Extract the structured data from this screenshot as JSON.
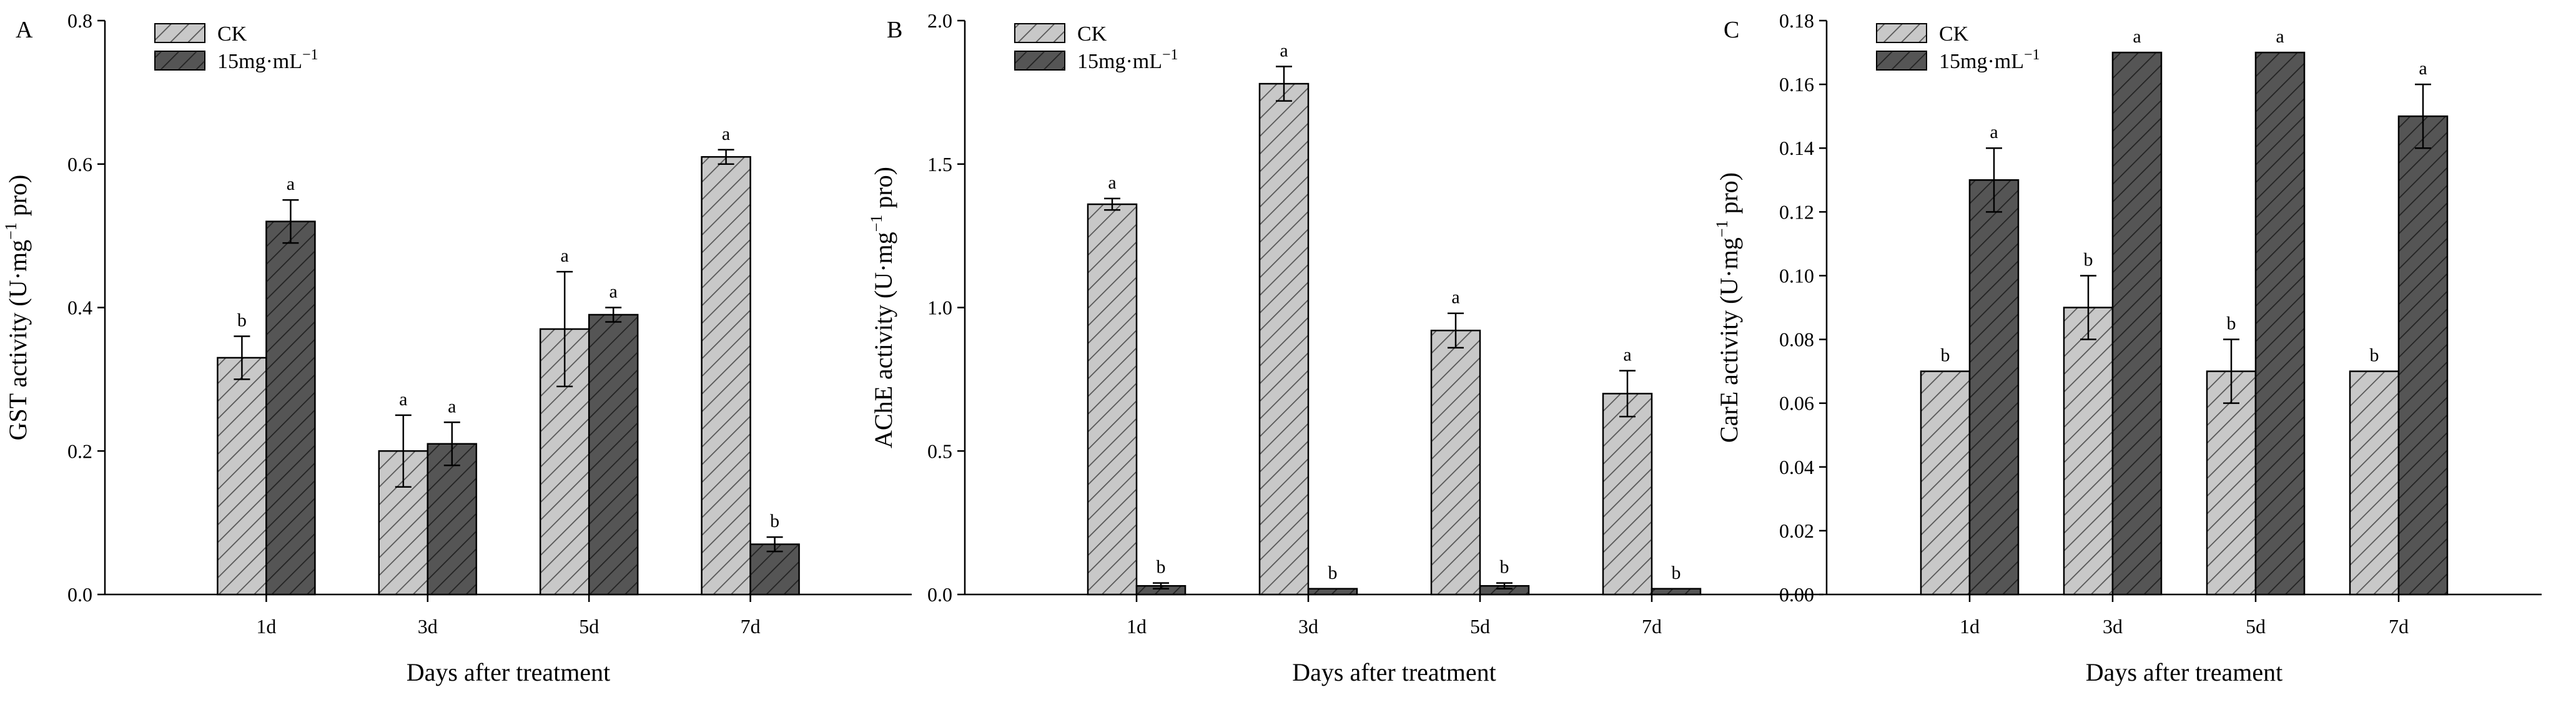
{
  "chart_data": [
    {
      "panel": "A",
      "type": "bar",
      "categories": [
        "1d",
        "3d",
        "5d",
        "7d"
      ],
      "ylabel_main": "GST activity (U·mg",
      "ylabel_sup": "−1",
      "ylabel_end": " pro)",
      "xlabel": "Days after treatment",
      "ylim": [
        0,
        0.8
      ],
      "yticks": [
        0.0,
        0.2,
        0.4,
        0.6,
        0.8
      ],
      "ytick_labels": [
        "0.0",
        "0.2",
        "0.4",
        "0.6",
        "0.8"
      ],
      "series": [
        {
          "name": "CK",
          "values": [
            0.33,
            0.2,
            0.37,
            0.61
          ],
          "errors": [
            0.03,
            0.05,
            0.08,
            0.01
          ],
          "sig": [
            "b",
            "a",
            "a",
            "a"
          ]
        },
        {
          "name": "15mg·mL",
          "sup": "−1",
          "values": [
            0.52,
            0.21,
            0.39,
            0.07
          ],
          "errors": [
            0.03,
            0.03,
            0.01,
            0.01
          ],
          "sig": [
            "a",
            "a",
            "a",
            "b"
          ]
        }
      ]
    },
    {
      "panel": "B",
      "type": "bar",
      "categories": [
        "1d",
        "3d",
        "5d",
        "7d"
      ],
      "ylabel_main": "AChE activity (U·mg",
      "ylabel_sup": "−1",
      "ylabel_end": " pro)",
      "xlabel": "Days after treatment",
      "ylim": [
        0,
        2.0
      ],
      "yticks": [
        0.0,
        0.5,
        1.0,
        1.5,
        2.0
      ],
      "ytick_labels": [
        "0.0",
        "0.5",
        "1.0",
        "1.5",
        "2.0"
      ],
      "series": [
        {
          "name": "CK",
          "values": [
            1.36,
            1.78,
            0.92,
            0.7
          ],
          "errors": [
            0.02,
            0.06,
            0.06,
            0.08
          ],
          "sig": [
            "a",
            "a",
            "a",
            "a"
          ]
        },
        {
          "name": "15mg·mL",
          "sup": "−1",
          "values": [
            0.03,
            0.02,
            0.03,
            0.02
          ],
          "errors": [
            0.01,
            0.0,
            0.01,
            0.0
          ],
          "sig": [
            "b",
            "b",
            "b",
            "b"
          ]
        }
      ]
    },
    {
      "panel": "C",
      "type": "bar",
      "categories": [
        "1d",
        "3d",
        "5d",
        "7d"
      ],
      "ylabel_main": "CarE activity (U·mg",
      "ylabel_sup": "−1",
      "ylabel_end": " pro)",
      "xlabel": "Days after treament",
      "ylim": [
        0,
        0.18
      ],
      "yticks": [
        0.0,
        0.02,
        0.04,
        0.06,
        0.08,
        0.1,
        0.12,
        0.14,
        0.16,
        0.18
      ],
      "ytick_labels": [
        "0.00",
        "0.02",
        "0.04",
        "0.06",
        "0.08",
        "0.10",
        "0.12",
        "0.14",
        "0.16",
        "0.18"
      ],
      "series": [
        {
          "name": "CK",
          "values": [
            0.07,
            0.09,
            0.07,
            0.07
          ],
          "errors": [
            0.0,
            0.01,
            0.01,
            0.0
          ],
          "sig": [
            "b",
            "b",
            "b",
            "b"
          ]
        },
        {
          "name": "15mg·mL",
          "sup": "−1",
          "values": [
            0.13,
            0.17,
            0.17,
            0.15
          ],
          "errors": [
            0.01,
            0.0,
            0.0,
            0.01
          ],
          "sig": [
            "a",
            "a",
            "a",
            "a"
          ]
        }
      ]
    }
  ],
  "colors": {
    "ck_fill": "#c8c8c8",
    "treat_fill": "#555555",
    "hatch_light": "#555555",
    "hatch_dark": "#222222",
    "axis": "#000000"
  }
}
